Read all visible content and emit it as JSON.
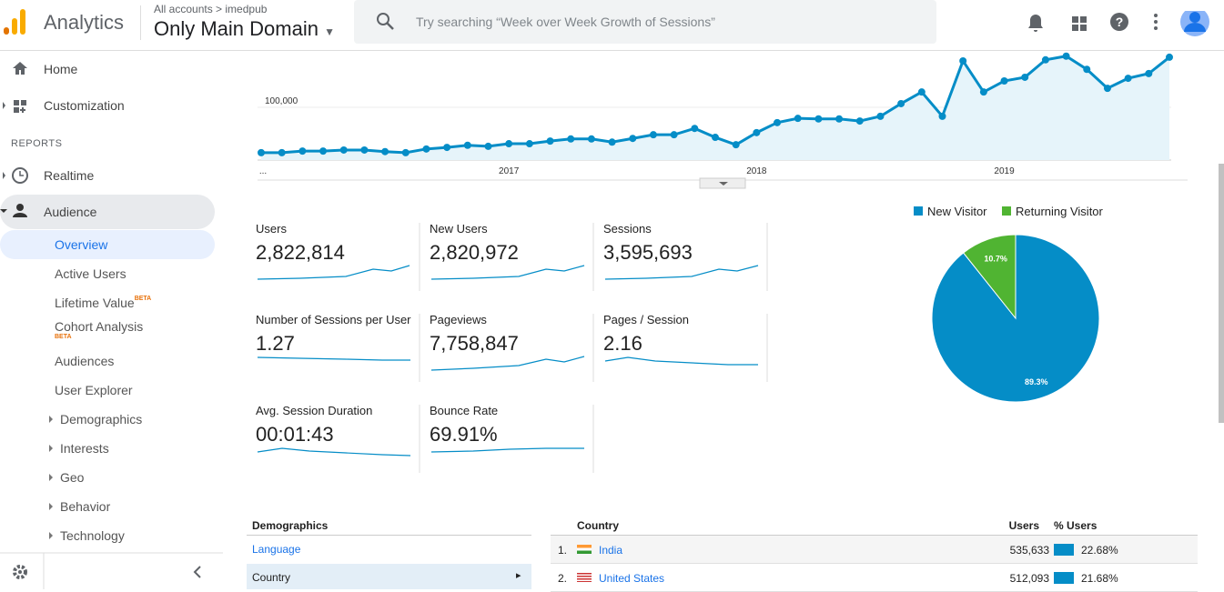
{
  "header": {
    "product": "Analytics",
    "breadcrumb": "All accounts",
    "account": "imedpub",
    "view": "Only Main Domain",
    "search_placeholder": "Try searching “Week over Week Growth of Sessions”"
  },
  "sidebar": {
    "home": "Home",
    "customization": "Customization",
    "section": "REPORTS",
    "realtime": "Realtime",
    "audience": "Audience",
    "audience_items": [
      {
        "label": "Overview"
      },
      {
        "label": "Active Users"
      },
      {
        "label": "Lifetime Value",
        "badge": "BETA"
      },
      {
        "label": "Cohort Analysis",
        "badge": "BETA"
      },
      {
        "label": "Audiences"
      },
      {
        "label": "User Explorer"
      },
      {
        "label": "Demographics"
      },
      {
        "label": "Interests"
      },
      {
        "label": "Geo"
      },
      {
        "label": "Behavior"
      },
      {
        "label": "Technology"
      }
    ]
  },
  "chart_data": [
    {
      "type": "line",
      "color": "#058dc7",
      "categories": [
        "...",
        null,
        null,
        null,
        null,
        null,
        null,
        null,
        null,
        null,
        null,
        null,
        "2017",
        null,
        null,
        null,
        null,
        null,
        null,
        null,
        null,
        null,
        null,
        null,
        "2018",
        null,
        null,
        null,
        null,
        null,
        null,
        null,
        null,
        null,
        null,
        null,
        "2019",
        null,
        null,
        null,
        null,
        null,
        null,
        null,
        null
      ],
      "values": [
        14000,
        14000,
        17000,
        17000,
        19000,
        19000,
        16000,
        14000,
        21000,
        24000,
        28000,
        26000,
        31000,
        31000,
        36000,
        40000,
        40000,
        34000,
        41000,
        48000,
        48000,
        60000,
        43000,
        29000,
        52000,
        71000,
        79000,
        78000,
        78000,
        74000,
        83000,
        107000,
        129000,
        83000,
        188000,
        129000,
        150000,
        157000,
        190000,
        197000,
        172000,
        136000,
        155000,
        164000,
        195000
      ],
      "ylim": [
        0,
        210000
      ],
      "yticks": [
        {
          "value": 100000,
          "label": "100,000"
        }
      ],
      "grid": true
    },
    {
      "type": "pie",
      "categories": [
        "New Visitor",
        "Returning Visitor"
      ],
      "values": [
        89.3,
        10.7
      ],
      "value_labels": [
        "89.3%",
        "10.7%"
      ],
      "colors": [
        "#058dc7",
        "#50b432"
      ]
    }
  ],
  "metrics": [
    {
      "label": "Users",
      "value": "2,822,814"
    },
    {
      "label": "New Users",
      "value": "2,820,972"
    },
    {
      "label": "Sessions",
      "value": "3,595,693"
    },
    {
      "label": "Number of Sessions per User",
      "value": "1.27"
    },
    {
      "label": "Pageviews",
      "value": "7,758,847"
    },
    {
      "label": "Pages / Session",
      "value": "2.16"
    },
    {
      "label": "Avg. Session Duration",
      "value": "00:01:43"
    },
    {
      "label": "Bounce Rate",
      "value": "69.91%"
    }
  ],
  "demographics": {
    "title": "Demographics",
    "items": [
      "Language",
      "Country"
    ]
  },
  "country_table": {
    "headers": [
      "Country",
      "Users",
      "% Users"
    ],
    "rows": [
      {
        "rank": "1.",
        "country": "India",
        "users": "535,633",
        "pct": "22.68%"
      },
      {
        "rank": "2.",
        "country": "United States",
        "users": "512,093",
        "pct": "21.68%"
      }
    ]
  }
}
